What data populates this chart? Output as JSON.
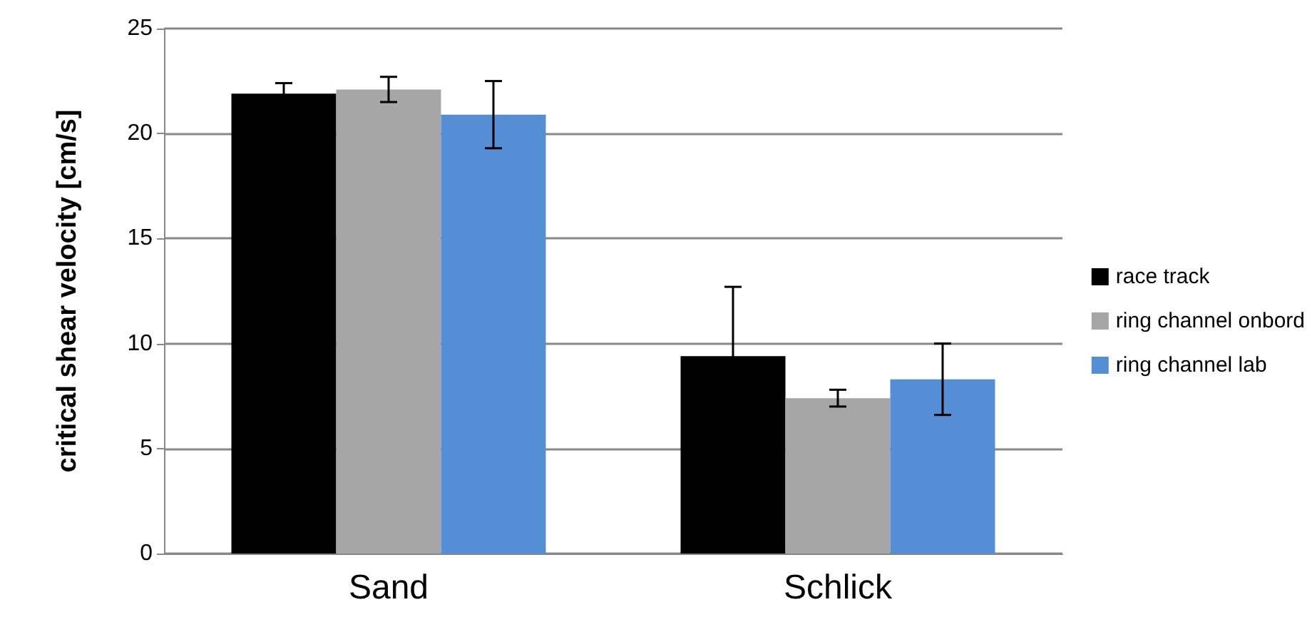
{
  "chart_data": {
    "type": "bar",
    "ylabel": "critical shear velocity [cm/s]",
    "categories": [
      "Sand",
      "Schlick"
    ],
    "series": [
      {
        "name": "race track",
        "color": "#000000",
        "values": [
          21.9,
          9.4
        ],
        "errors": [
          0.5,
          3.3
        ]
      },
      {
        "name": "ring channel onbord",
        "color": "#a6a6a6",
        "values": [
          22.1,
          7.4
        ],
        "errors": [
          0.6,
          0.4
        ]
      },
      {
        "name": "ring channel lab",
        "color": "#558ed5",
        "values": [
          20.9,
          8.3
        ],
        "errors": [
          1.6,
          1.7
        ]
      }
    ],
    "ylim": [
      0,
      25
    ],
    "yticks": [
      0,
      5,
      10,
      15,
      20,
      25
    ],
    "grid": "y",
    "legend": "right"
  }
}
